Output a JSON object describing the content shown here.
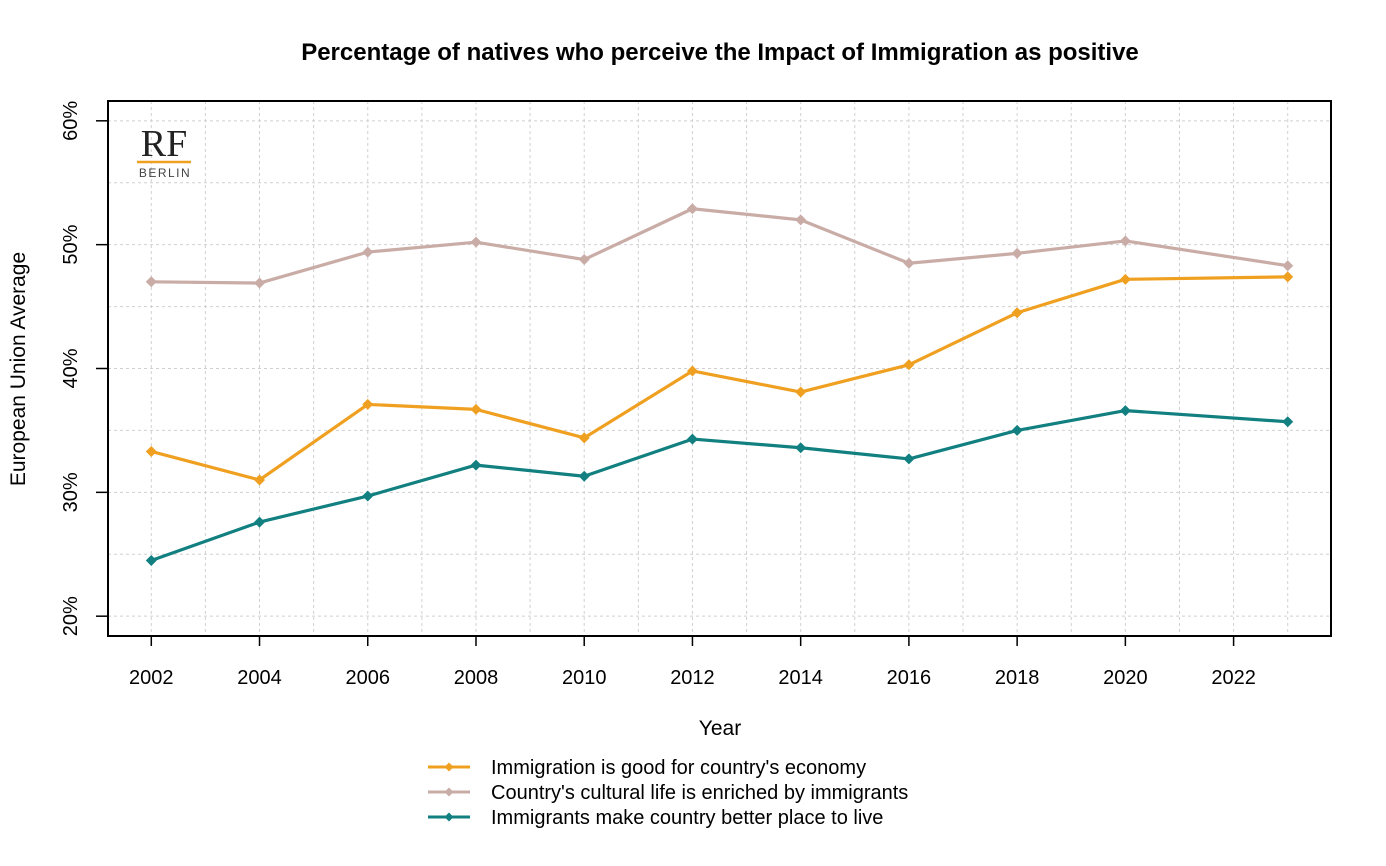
{
  "chart_data": {
    "type": "line",
    "title": "Percentage of natives who perceive the Impact of Immigration as positive",
    "xlabel": "Year",
    "ylabel": "European Union Average",
    "xlim": [
      2001.2,
      2023.8
    ],
    "ylim": [
      18.4,
      61.6
    ],
    "x_ticks": [
      2002,
      2004,
      2006,
      2008,
      2010,
      2012,
      2014,
      2016,
      2018,
      2020,
      2022
    ],
    "x_tick_labels": [
      "2002",
      "2004",
      "2006",
      "2008",
      "2010",
      "2012",
      "2014",
      "2016",
      "2018",
      "2020",
      "2022"
    ],
    "y_ticks": [
      20,
      30,
      40,
      50,
      60
    ],
    "y_tick_labels": [
      "20%",
      "30%",
      "40%",
      "50%",
      "60%"
    ],
    "grid": true,
    "legend_position": "bottom-center",
    "x": [
      2002,
      2004,
      2006,
      2008,
      2010,
      2012,
      2014,
      2016,
      2018,
      2020,
      2023
    ],
    "series": [
      {
        "name": "Immigration is good for country's economy",
        "color": "#F0A020",
        "values": [
          33.3,
          31.0,
          37.1,
          36.7,
          34.4,
          39.8,
          38.1,
          40.3,
          44.5,
          47.2,
          47.4
        ]
      },
      {
        "name": "Country's cultural life is enriched by immigrants",
        "color": "#C9ACA6",
        "values": [
          47.0,
          46.9,
          49.4,
          50.2,
          48.8,
          52.9,
          52.0,
          48.5,
          49.3,
          50.3,
          48.3
        ]
      },
      {
        "name": "Immigrants make country better place to live",
        "color": "#128080",
        "values": [
          24.5,
          27.6,
          29.7,
          32.2,
          31.3,
          34.3,
          33.6,
          32.7,
          35.0,
          36.6,
          35.7
        ]
      }
    ]
  },
  "logo": {
    "mark": "RF",
    "subtitle": "BERLIN",
    "accent_color": "#F0A020"
  }
}
